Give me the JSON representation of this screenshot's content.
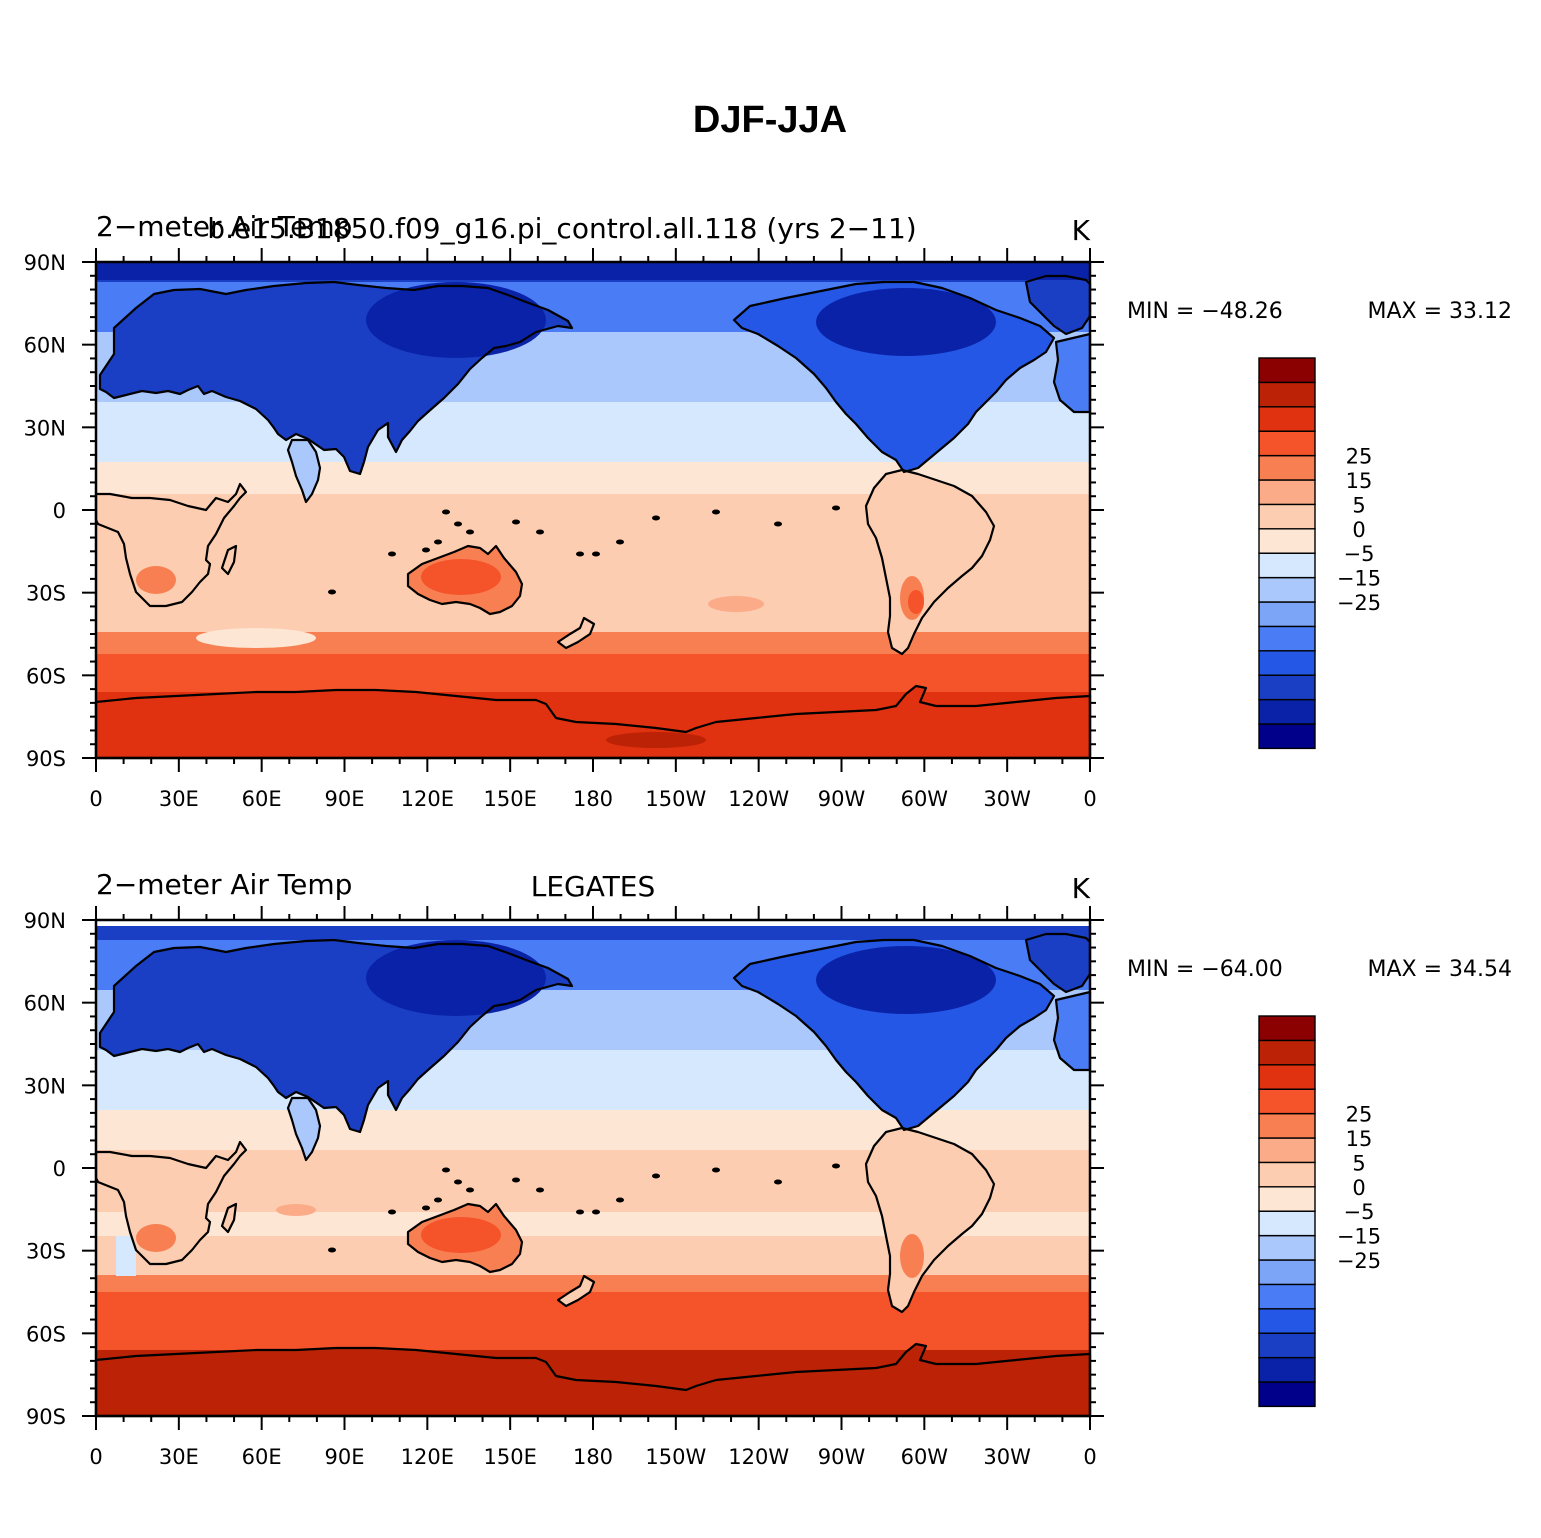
{
  "page": {
    "title": "DJF-JJA"
  },
  "palette": [
    "#00008b",
    "#0a22a8",
    "#1a3fc4",
    "#2457e6",
    "#4a7cf5",
    "#7ca5f8",
    "#aac8fb",
    "#d6e8fd",
    "#fde6d4",
    "#fccdb0",
    "#fbab88",
    "#f87f52",
    "#f5532a",
    "#e03110",
    "#bc2205",
    "#8b0000"
  ],
  "colorbar": {
    "tick_labels": [
      {
        "label": "25",
        "after_box": 12
      },
      {
        "label": "15",
        "after_box": 11
      },
      {
        "label": "5",
        "after_box": 10
      },
      {
        "label": "0",
        "after_box": 9
      },
      {
        "label": "−5",
        "after_box": 8
      },
      {
        "label": "−15",
        "after_box": 7
      },
      {
        "label": "−25",
        "after_box": 6
      }
    ]
  },
  "axes": {
    "lat_labels": [
      "90N",
      "60N",
      "30N",
      "0",
      "30S",
      "60S",
      "90S"
    ],
    "lon_labels": [
      "0",
      "30E",
      "60E",
      "90E",
      "120E",
      "150E",
      "180",
      "150W",
      "120W",
      "90W",
      "60W",
      "30W",
      "0"
    ]
  },
  "panels": [
    {
      "left_title": "2−meter Air Temp",
      "center_title": "b.e15.B1850.f09_g16.pi_control.all.118 (yrs 2−11)",
      "units": "K",
      "min_label": "MIN = −48.26",
      "max_label": "MAX =   33.12"
    },
    {
      "left_title": "2−meter Air Temp",
      "center_title": "LEGATES",
      "units": "K",
      "min_label": "MIN = −64.00",
      "max_label": "MAX =   34.54"
    }
  ]
}
